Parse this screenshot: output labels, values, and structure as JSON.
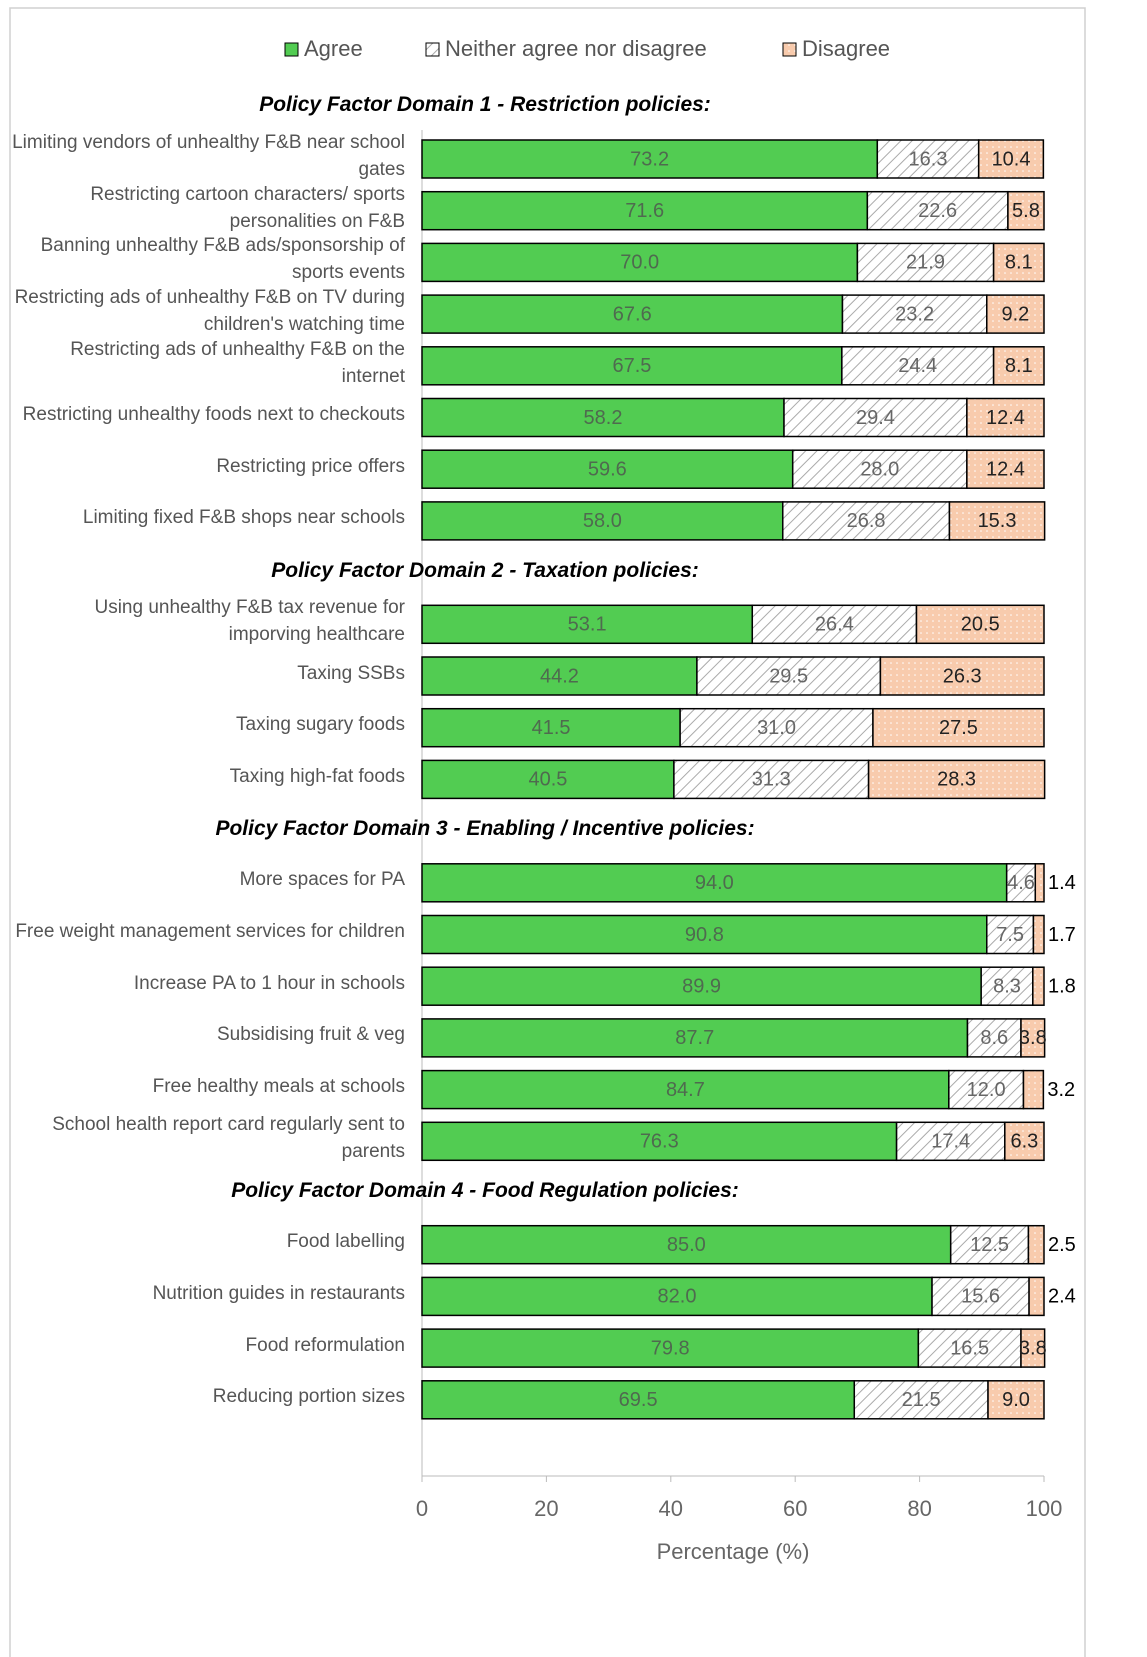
{
  "chart_data": {
    "type": "bar",
    "orientation": "horizontal",
    "stacked": true,
    "xlabel": "Percentage (%)",
    "xlim": [
      0,
      100
    ],
    "xticks": [
      0,
      20,
      40,
      60,
      80,
      100
    ],
    "grid": false,
    "legend": "top",
    "series": [
      {
        "name": "Agree",
        "color": "#52cc52",
        "pattern": null,
        "label_color": "#4f6a4f"
      },
      {
        "name": "Neither agree nor disagree",
        "color": "#ffffff",
        "pattern": "hatch",
        "label_color": "#666666"
      },
      {
        "name": "Disagree",
        "color": "#f8cbad",
        "pattern": "dots",
        "label_color": "#222222"
      }
    ],
    "groups": [
      {
        "title": "Policy Factor Domain 1 - Restriction policies:",
        "categories": [
          "Limiting vendors of unhealthy F&B near school gates",
          "Restricting cartoon characters/ sports personalities on F&B",
          "Banning unhealthy F&B ads/sponsorship of sports events",
          "Restricting ads of unhealthy F&B on TV during children's watching time",
          "Restricting ads of unhealthy F&B on the internet",
          "Restricting unhealthy foods next to checkouts",
          "Restricting price offers",
          "Limiting fixed F&B shops near schools"
        ],
        "series": [
          {
            "values": [
              73.2,
              71.6,
              70.0,
              67.6,
              67.5,
              58.2,
              59.6,
              58.0
            ],
            "value_labels": [
              "73.2",
              "71.6",
              "70.0",
              "67.6",
              "67.5",
              "58.2",
              "59.6",
              "58.0"
            ]
          },
          {
            "values": [
              16.3,
              22.6,
              21.9,
              23.2,
              24.4,
              29.4,
              28.0,
              26.8
            ],
            "value_labels": [
              "16.3",
              "22.6",
              "21.9",
              "23.2",
              "24.4",
              "29.4",
              "28.0",
              "26.8"
            ]
          },
          {
            "values": [
              10.4,
              5.8,
              8.1,
              9.2,
              8.1,
              12.4,
              12.4,
              15.3
            ],
            "value_labels": [
              "10.4",
              "5.8",
              "8.1",
              "9.2",
              "8.1",
              "12.4",
              "12.4",
              "15.3"
            ]
          }
        ]
      },
      {
        "title": "Policy Factor Domain 2 - Taxation policies:",
        "categories": [
          "Using unhealthy F&B tax revenue for imporving healthcare",
          "Taxing SSBs",
          "Taxing sugary foods",
          "Taxing high-fat foods"
        ],
        "series": [
          {
            "values": [
              53.1,
              44.2,
              41.5,
              40.5
            ],
            "value_labels": [
              "53.1",
              "44.2",
              "41.5",
              "40.5"
            ]
          },
          {
            "values": [
              26.4,
              29.5,
              31.0,
              31.3
            ],
            "value_labels": [
              "26.4",
              "29.5",
              "31.0",
              "31.3"
            ]
          },
          {
            "values": [
              20.5,
              26.3,
              27.5,
              28.3
            ],
            "value_labels": [
              "20.5",
              "26.3",
              "27.5",
              "28.3"
            ]
          }
        ]
      },
      {
        "title": "Policy Factor Domain 3 - Enabling / Incentive policies:",
        "categories": [
          "More spaces for PA",
          "Free weight management services for children",
          "Increase PA to 1 hour in schools",
          "Subsidising fruit & veg",
          "Free healthy meals at schools",
          "School health report card regularly sent to parents"
        ],
        "series": [
          {
            "values": [
              94.0,
              90.8,
              89.9,
              87.7,
              84.7,
              76.3
            ],
            "value_labels": [
              "94.0",
              "90.8",
              "89.9",
              "87.7",
              "84.7",
              "76.3"
            ]
          },
          {
            "values": [
              4.6,
              7.5,
              8.3,
              8.6,
              12.0,
              17.4
            ],
            "value_labels": [
              "4.6",
              "7.5",
              "8.3",
              "8.6",
              "12.0",
              "17.4"
            ]
          },
          {
            "values": [
              1.4,
              1.7,
              1.8,
              3.8,
              3.2,
              6.3
            ],
            "value_labels": [
              "1.4",
              "1.7",
              "1.8",
              "3.8",
              "3.2",
              "6.3"
            ]
          }
        ]
      },
      {
        "title": "Policy Factor Domain 4 -  Food Regulation policies:",
        "categories": [
          "Food labelling",
          "Nutrition guides in restaurants",
          "Food reformulation",
          "Reducing portion sizes"
        ],
        "series": [
          {
            "values": [
              85.0,
              82.0,
              79.8,
              69.5
            ],
            "value_labels": [
              "85.0",
              "82.0",
              "79.8",
              "69.5"
            ]
          },
          {
            "values": [
              12.5,
              15.6,
              16.5,
              21.5
            ],
            "value_labels": [
              "12.5",
              "15.6",
              "16.5",
              "21.5"
            ]
          },
          {
            "values": [
              2.5,
              2.4,
              3.8,
              9.0
            ],
            "value_labels": [
              "2.5",
              "2.4",
              "3.8",
              "9.0"
            ]
          }
        ]
      }
    ]
  }
}
